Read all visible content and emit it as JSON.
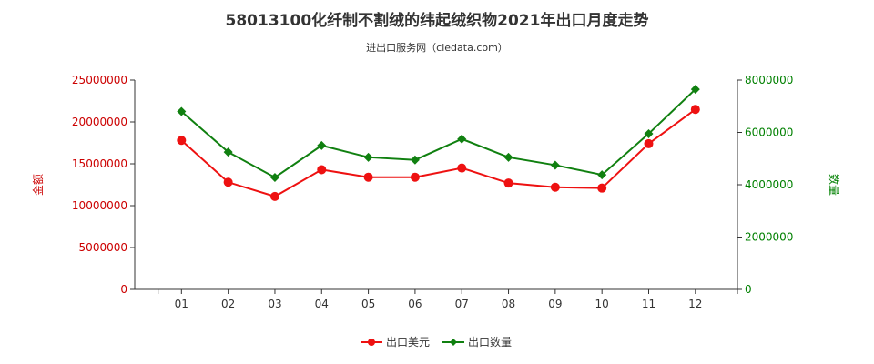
{
  "chart_data": {
    "type": "line",
    "title": "58013100化纤制不割绒的纬起绒织物2021年出口月度走势",
    "subtitle": "进出口服务网（ciedata.com）",
    "categories": [
      "01",
      "02",
      "03",
      "04",
      "05",
      "06",
      "07",
      "08",
      "09",
      "10",
      "11",
      "12"
    ],
    "y_left": {
      "label": "金额",
      "ticks": [
        "0",
        "5000000",
        "10000000",
        "15000000",
        "20000000",
        "25000000"
      ],
      "range": [
        0,
        25000000
      ],
      "color": "#cc0000"
    },
    "y_right": {
      "label": "数量",
      "ticks": [
        "0",
        "2000000",
        "4000000",
        "6000000",
        "8000000"
      ],
      "range": [
        0,
        8000000
      ],
      "color": "#008000"
    },
    "series": [
      {
        "name": "出口美元",
        "axis": "left",
        "color": "#ee1111",
        "values": [
          17800000,
          12800000,
          11100000,
          14300000,
          13400000,
          13400000,
          14500000,
          12700000,
          12200000,
          12100000,
          17400000,
          21500000
        ]
      },
      {
        "name": "出口数量",
        "axis": "right",
        "color": "#108010",
        "values": [
          6800000,
          5250000,
          4280000,
          5500000,
          5050000,
          4950000,
          5750000,
          5050000,
          4750000,
          4380000,
          5950000,
          7650000
        ]
      }
    ],
    "legend": "bottom-center",
    "grid": false
  }
}
